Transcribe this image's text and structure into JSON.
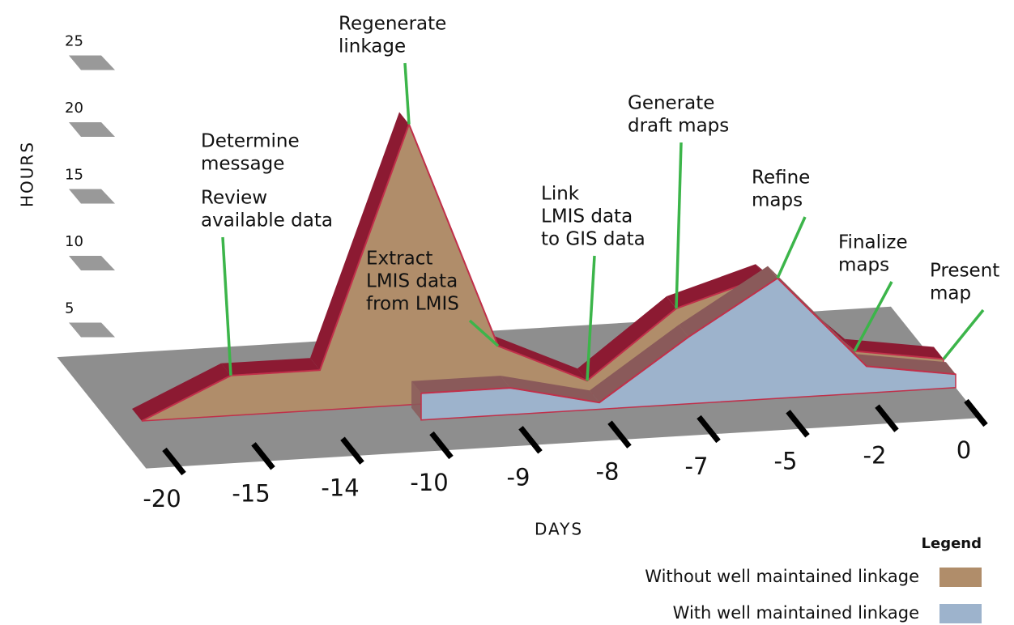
{
  "chart_data": {
    "type": "area3d",
    "xlabel": "DAYS",
    "ylabel": "HOURS",
    "categories": [
      "-20",
      "-15",
      "-14",
      "-10",
      "-9",
      "-8",
      "-7",
      "-5",
      "-2",
      "0"
    ],
    "ylim": [
      0,
      25
    ],
    "yticks": [
      5,
      10,
      15,
      20,
      25
    ],
    "series": [
      {
        "name": "Without well maintained linkage",
        "color": "#b08d6a",
        "side_color": "#8c1a32",
        "values": [
          0,
          3,
          3,
          21,
          4,
          1,
          6,
          8,
          2,
          1
        ]
      },
      {
        "name": "With well maintained linkage",
        "color": "#9db3cc",
        "side_color": "#8a5a5a",
        "values": [
          null,
          null,
          null,
          2,
          2,
          0.5,
          5,
          9,
          2,
          1
        ]
      }
    ],
    "legend_title": "Legend",
    "annotations": [
      {
        "lines": [
          "Determine",
          "message"
        ],
        "category": "-15"
      },
      {
        "lines": [
          "Review",
          "available data"
        ],
        "category": "-15"
      },
      {
        "lines": [
          "Regenerate",
          "linkage"
        ],
        "category": "-10"
      },
      {
        "lines": [
          "Extract",
          "LMIS data",
          "from LMIS"
        ],
        "category": "-9"
      },
      {
        "lines": [
          "Link",
          "LMIS data",
          "to GIS data"
        ],
        "category": "-8"
      },
      {
        "lines": [
          "Generate",
          "draft maps"
        ],
        "category": "-7"
      },
      {
        "lines": [
          "Refine",
          "maps"
        ],
        "category": "-5"
      },
      {
        "lines": [
          "Finalize",
          "maps"
        ],
        "category": "-2"
      },
      {
        "lines": [
          "Present",
          "map"
        ],
        "category": "0"
      }
    ]
  }
}
